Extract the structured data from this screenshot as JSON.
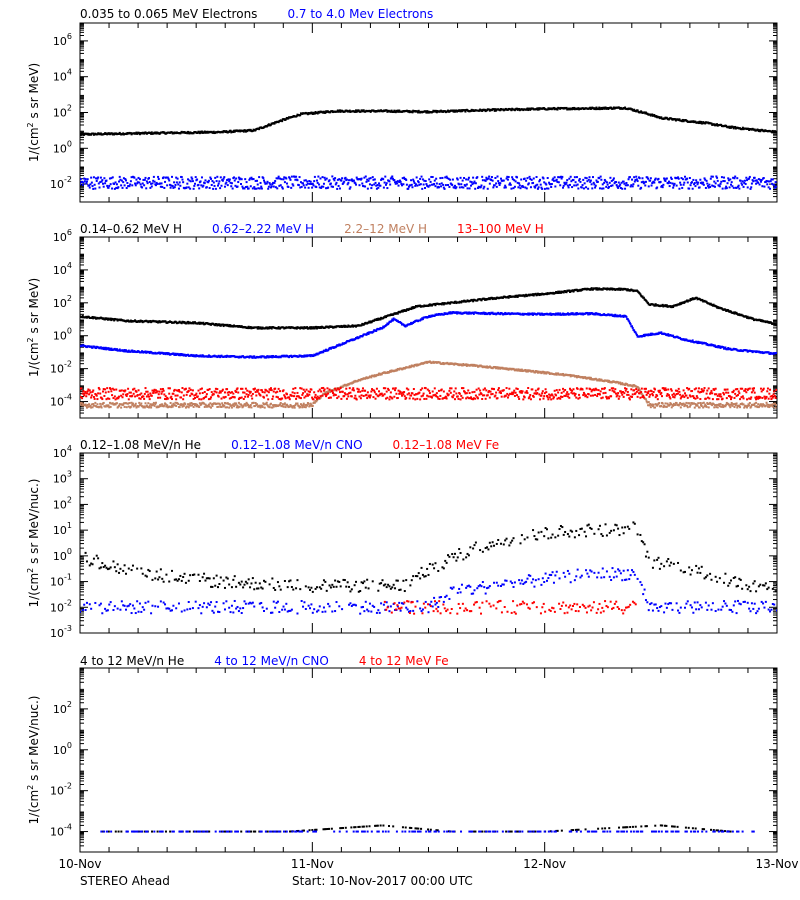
{
  "footer": {
    "spacecraft": "STEREO Ahead",
    "start": "Start: 10-Nov-2017 00:00 UTC"
  },
  "x_ticks": [
    "10-Nov",
    "11-Nov",
    "12-Nov",
    "13-Nov"
  ],
  "chart_data": [
    {
      "type": "scatter",
      "yscale": "log",
      "ylim_exp": [
        -3,
        7
      ],
      "xlim_days": [
        0,
        3
      ],
      "ylabel_prefix": "1/(cm",
      "ylabel_sup": "2",
      "ylabel_suffix": " s sr MeV)",
      "ytick_exps": [
        -2,
        0,
        2,
        4,
        6
      ],
      "series": [
        {
          "name": "0.035 to 0.065 MeV Electrons",
          "color": "#000000",
          "points": [
            [
              0,
              6
            ],
            [
              0.3,
              7
            ],
            [
              0.6,
              8
            ],
            [
              0.75,
              10
            ],
            [
              0.85,
              30
            ],
            [
              0.95,
              80
            ],
            [
              1.1,
              120
            ],
            [
              1.3,
              120
            ],
            [
              1.5,
              110
            ],
            [
              1.7,
              130
            ],
            [
              2.0,
              160
            ],
            [
              2.2,
              170
            ],
            [
              2.35,
              180
            ],
            [
              2.45,
              80
            ],
            [
              2.5,
              50
            ],
            [
              2.7,
              25
            ],
            [
              2.8,
              15
            ],
            [
              3.0,
              8
            ]
          ]
        },
        {
          "name": "0.7 to 4.0 Mev Electrons",
          "color": "#0000ff",
          "points": [
            [
              0,
              0.012
            ],
            [
              3.0,
              0.012
            ]
          ]
        }
      ]
    },
    {
      "type": "scatter",
      "yscale": "log",
      "ylim_exp": [
        -5,
        6
      ],
      "xlim_days": [
        0,
        3
      ],
      "ylabel_prefix": "1/(cm",
      "ylabel_sup": "2",
      "ylabel_suffix": " s sr MeV)",
      "ytick_exps": [
        -4,
        -2,
        0,
        2,
        4,
        6
      ],
      "series": [
        {
          "name": "0.14–0.62 MeV H",
          "color": "#000000",
          "points": [
            [
              0,
              15
            ],
            [
              0.2,
              8
            ],
            [
              0.5,
              6
            ],
            [
              0.75,
              3
            ],
            [
              1.0,
              3
            ],
            [
              1.2,
              4
            ],
            [
              1.35,
              20
            ],
            [
              1.45,
              60
            ],
            [
              1.6,
              100
            ],
            [
              1.8,
              200
            ],
            [
              2.0,
              350
            ],
            [
              2.2,
              700
            ],
            [
              2.35,
              650
            ],
            [
              2.4,
              500
            ],
            [
              2.45,
              80
            ],
            [
              2.55,
              60
            ],
            [
              2.65,
              200
            ],
            [
              2.75,
              50
            ],
            [
              2.9,
              10
            ],
            [
              3.0,
              5
            ]
          ]
        },
        {
          "name": "0.62–2.22 MeV H",
          "color": "#0000ff",
          "points": [
            [
              0,
              0.25
            ],
            [
              0.2,
              0.12
            ],
            [
              0.5,
              0.06
            ],
            [
              0.75,
              0.05
            ],
            [
              1.0,
              0.06
            ],
            [
              1.2,
              0.8
            ],
            [
              1.3,
              3
            ],
            [
              1.35,
              10
            ],
            [
              1.4,
              4
            ],
            [
              1.5,
              15
            ],
            [
              1.6,
              25
            ],
            [
              1.8,
              22
            ],
            [
              2.0,
              20
            ],
            [
              2.2,
              22
            ],
            [
              2.35,
              15
            ],
            [
              2.4,
              0.9
            ],
            [
              2.5,
              1.5
            ],
            [
              2.6,
              0.6
            ],
            [
              2.7,
              0.3
            ],
            [
              2.8,
              0.15
            ],
            [
              3.0,
              0.08
            ]
          ]
        },
        {
          "name": "2.2–12 MeV H",
          "color": "#c08060",
          "points": [
            [
              0,
              6e-05
            ],
            [
              0.5,
              6e-05
            ],
            [
              1.0,
              6e-05
            ],
            [
              1.05,
              0.0003
            ],
            [
              1.2,
              0.002
            ],
            [
              1.3,
              0.005
            ],
            [
              1.5,
              0.025
            ],
            [
              1.7,
              0.015
            ],
            [
              1.9,
              0.008
            ],
            [
              2.1,
              0.004
            ],
            [
              2.3,
              0.0015
            ],
            [
              2.4,
              0.0008
            ],
            [
              2.45,
              6e-05
            ],
            [
              3.0,
              6e-05
            ]
          ]
        },
        {
          "name": "13–100 MeV H",
          "color": "#ff0000",
          "points": [
            [
              0,
              0.0003
            ],
            [
              3.0,
              0.0003
            ]
          ]
        }
      ]
    },
    {
      "type": "scatter",
      "yscale": "log",
      "ylim_exp": [
        -3,
        4
      ],
      "xlim_days": [
        0,
        3
      ],
      "ylabel_prefix": "1/(cm",
      "ylabel_sup": "2",
      "ylabel_suffix": " s sr MeV/nuc.)",
      "ytick_exps": [
        -3,
        -2,
        -1,
        0,
        1,
        2,
        3,
        4
      ],
      "series": [
        {
          "name": "0.12–1.08 MeV/n He",
          "color": "#000000",
          "points": [
            [
              0,
              1.0
            ],
            [
              0.1,
              0.5
            ],
            [
              0.2,
              0.3
            ],
            [
              0.4,
              0.15
            ],
            [
              0.6,
              0.1
            ],
            [
              0.8,
              0.08
            ],
            [
              1.0,
              0.07
            ],
            [
              1.2,
              0.07
            ],
            [
              1.4,
              0.07
            ],
            [
              1.5,
              0.3
            ],
            [
              1.7,
              2
            ],
            [
              1.9,
              5
            ],
            [
              2.0,
              8
            ],
            [
              2.2,
              10
            ],
            [
              2.4,
              12
            ],
            [
              2.45,
              0.6
            ],
            [
              2.55,
              0.4
            ],
            [
              2.7,
              0.2
            ],
            [
              2.8,
              0.1
            ],
            [
              3.0,
              0.05
            ]
          ]
        },
        {
          "name": "0.12–1.08 MeV/n CNO",
          "color": "#0000ff",
          "points": [
            [
              0,
              0.01
            ],
            [
              1.5,
              0.01
            ],
            [
              1.6,
              0.04
            ],
            [
              1.8,
              0.07
            ],
            [
              2.0,
              0.12
            ],
            [
              2.2,
              0.2
            ],
            [
              2.4,
              0.2
            ],
            [
              2.45,
              0.01
            ],
            [
              3.0,
              0.01
            ]
          ]
        },
        {
          "name": "0.12–1.08 MeV Fe",
          "color": "#ff0000",
          "points": [
            [
              1.3,
              0.01
            ],
            [
              2.4,
              0.01
            ]
          ]
        }
      ]
    },
    {
      "type": "scatter",
      "yscale": "log",
      "ylim_exp": [
        -5,
        4
      ],
      "xlim_days": [
        0,
        3
      ],
      "ylabel_prefix": "1/(cm",
      "ylabel_sup": "2",
      "ylabel_suffix": " s sr MeV/nuc.)",
      "ytick_exps": [
        -4,
        -2,
        0,
        2
      ],
      "series": [
        {
          "name": "4 to 12 MeV/n He",
          "color": "#000000",
          "points": [
            [
              0.1,
              0.0001
            ],
            [
              0.3,
              0.0001
            ],
            [
              0.6,
              0.0001
            ],
            [
              0.9,
              0.0001
            ],
            [
              1.3,
              0.0002
            ],
            [
              1.6,
              0.0001
            ],
            [
              2.0,
              0.0001
            ],
            [
              2.5,
              0.0002
            ],
            [
              2.8,
              0.0001
            ]
          ]
        },
        {
          "name": "4 to 12 MeV/n CNO",
          "color": "#0000ff",
          "points": [
            [
              0.05,
              0.0001
            ],
            [
              0.2,
              0.0001
            ],
            [
              0.4,
              0.0001
            ],
            [
              0.8,
              0.0001
            ],
            [
              1.1,
              0.0001
            ],
            [
              1.8,
              0.0001
            ],
            [
              2.3,
              0.0001
            ],
            [
              2.6,
              0.0001
            ],
            [
              2.9,
              0.0001
            ]
          ]
        },
        {
          "name": "4 to 12 MeV Fe",
          "color": "#ff0000",
          "points": []
        }
      ]
    }
  ]
}
